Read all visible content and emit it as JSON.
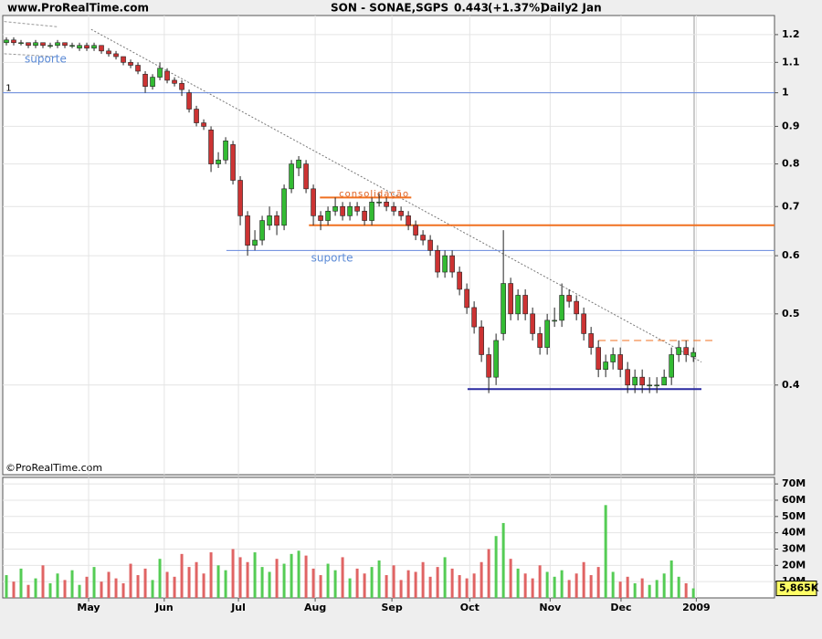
{
  "chart_data": {
    "type": "candlestick",
    "site": "www.ProRealTime.com",
    "title": "SON - SONAE,SGPS",
    "last": 0.443,
    "change_label": "(+1.37%)",
    "period": "Daily",
    "date": "2 Jan",
    "copyright": "©ProRealTime.com",
    "log_scale": true,
    "grid": true,
    "up_color": "#33bb33",
    "down_color": "#cc3333",
    "volume_up_color": "#55cc55",
    "volume_down_color": "#e06464",
    "ylim": [
      0.302,
      1.274
    ],
    "yticks": [
      0.4,
      0.5,
      0.6,
      0.7,
      0.8,
      0.9,
      1,
      1.1,
      1.2
    ],
    "xlim": [
      -0.5,
      105.1
    ],
    "xticks": [
      {
        "value": 11.25,
        "label": "May"
      },
      {
        "value": 21.6,
        "label": "Jun"
      },
      {
        "value": 31.75,
        "label": "Jul"
      },
      {
        "value": 42.25,
        "label": "Aug"
      },
      {
        "value": 52.75,
        "label": "Sep"
      },
      {
        "value": 63.4,
        "label": "Oct"
      },
      {
        "value": 74.4,
        "label": "Nov"
      },
      {
        "value": 84.1,
        "label": "Dec"
      },
      {
        "value": 94.4,
        "label": "2009"
      }
    ],
    "ohlc": [
      [
        1.17,
        1.19,
        1.16,
        1.18
      ],
      [
        1.18,
        1.19,
        1.16,
        1.17
      ],
      [
        1.17,
        1.18,
        1.16,
        1.17
      ],
      [
        1.17,
        1.17,
        1.15,
        1.16
      ],
      [
        1.16,
        1.18,
        1.15,
        1.17
      ],
      [
        1.17,
        1.17,
        1.15,
        1.16
      ],
      [
        1.16,
        1.17,
        1.15,
        1.16
      ],
      [
        1.16,
        1.18,
        1.15,
        1.17
      ],
      [
        1.17,
        1.17,
        1.15,
        1.16
      ],
      [
        1.16,
        1.17,
        1.15,
        1.16
      ],
      [
        1.15,
        1.17,
        1.14,
        1.16
      ],
      [
        1.16,
        1.17,
        1.14,
        1.15
      ],
      [
        1.15,
        1.17,
        1.14,
        1.16
      ],
      [
        1.16,
        1.16,
        1.13,
        1.14
      ],
      [
        1.14,
        1.15,
        1.12,
        1.13
      ],
      [
        1.13,
        1.14,
        1.11,
        1.12
      ],
      [
        1.12,
        1.12,
        1.09,
        1.1
      ],
      [
        1.1,
        1.11,
        1.08,
        1.09
      ],
      [
        1.09,
        1.1,
        1.06,
        1.07
      ],
      [
        1.06,
        1.07,
        1.0,
        1.02
      ],
      [
        1.02,
        1.06,
        1.01,
        1.05
      ],
      [
        1.05,
        1.1,
        1.04,
        1.08
      ],
      [
        1.07,
        1.08,
        1.03,
        1.04
      ],
      [
        1.04,
        1.05,
        1.02,
        1.03
      ],
      [
        1.03,
        1.04,
        0.99,
        1.01
      ],
      [
        1.0,
        1.01,
        0.94,
        0.95
      ],
      [
        0.95,
        0.96,
        0.9,
        0.91
      ],
      [
        0.91,
        0.92,
        0.89,
        0.9
      ],
      [
        0.89,
        0.9,
        0.78,
        0.8
      ],
      [
        0.8,
        0.83,
        0.79,
        0.81
      ],
      [
        0.81,
        0.87,
        0.8,
        0.86
      ],
      [
        0.85,
        0.86,
        0.75,
        0.76
      ],
      [
        0.76,
        0.77,
        0.66,
        0.68
      ],
      [
        0.68,
        0.69,
        0.6,
        0.62
      ],
      [
        0.62,
        0.65,
        0.61,
        0.63
      ],
      [
        0.63,
        0.68,
        0.62,
        0.67
      ],
      [
        0.66,
        0.7,
        0.65,
        0.68
      ],
      [
        0.68,
        0.69,
        0.64,
        0.66
      ],
      [
        0.66,
        0.75,
        0.65,
        0.74
      ],
      [
        0.74,
        0.81,
        0.73,
        0.8
      ],
      [
        0.79,
        0.82,
        0.77,
        0.81
      ],
      [
        0.8,
        0.81,
        0.73,
        0.74
      ],
      [
        0.74,
        0.75,
        0.66,
        0.68
      ],
      [
        0.68,
        0.69,
        0.65,
        0.67
      ],
      [
        0.67,
        0.7,
        0.66,
        0.69
      ],
      [
        0.69,
        0.72,
        0.68,
        0.7
      ],
      [
        0.7,
        0.71,
        0.67,
        0.68
      ],
      [
        0.68,
        0.71,
        0.67,
        0.7
      ],
      [
        0.7,
        0.71,
        0.68,
        0.69
      ],
      [
        0.69,
        0.7,
        0.66,
        0.67
      ],
      [
        0.67,
        0.72,
        0.66,
        0.71
      ],
      [
        0.71,
        0.73,
        0.7,
        0.71
      ],
      [
        0.71,
        0.72,
        0.69,
        0.7
      ],
      [
        0.7,
        0.71,
        0.68,
        0.69
      ],
      [
        0.69,
        0.7,
        0.67,
        0.68
      ],
      [
        0.68,
        0.69,
        0.65,
        0.66
      ],
      [
        0.66,
        0.67,
        0.63,
        0.64
      ],
      [
        0.64,
        0.65,
        0.62,
        0.63
      ],
      [
        0.63,
        0.64,
        0.6,
        0.61
      ],
      [
        0.61,
        0.62,
        0.56,
        0.57
      ],
      [
        0.57,
        0.61,
        0.56,
        0.6
      ],
      [
        0.6,
        0.61,
        0.56,
        0.57
      ],
      [
        0.57,
        0.58,
        0.53,
        0.54
      ],
      [
        0.54,
        0.55,
        0.5,
        0.51
      ],
      [
        0.51,
        0.52,
        0.47,
        0.48
      ],
      [
        0.48,
        0.49,
        0.43,
        0.44
      ],
      [
        0.44,
        0.45,
        0.39,
        0.41
      ],
      [
        0.41,
        0.47,
        0.4,
        0.46
      ],
      [
        0.47,
        0.65,
        0.46,
        0.55
      ],
      [
        0.55,
        0.56,
        0.49,
        0.5
      ],
      [
        0.5,
        0.54,
        0.49,
        0.53
      ],
      [
        0.53,
        0.54,
        0.49,
        0.5
      ],
      [
        0.5,
        0.51,
        0.46,
        0.47
      ],
      [
        0.47,
        0.48,
        0.44,
        0.45
      ],
      [
        0.45,
        0.5,
        0.44,
        0.49
      ],
      [
        0.49,
        0.51,
        0.48,
        0.49
      ],
      [
        0.49,
        0.55,
        0.48,
        0.53
      ],
      [
        0.53,
        0.54,
        0.51,
        0.52
      ],
      [
        0.52,
        0.53,
        0.49,
        0.5
      ],
      [
        0.5,
        0.51,
        0.46,
        0.47
      ],
      [
        0.47,
        0.48,
        0.44,
        0.45
      ],
      [
        0.45,
        0.46,
        0.41,
        0.42
      ],
      [
        0.42,
        0.44,
        0.41,
        0.43
      ],
      [
        0.43,
        0.45,
        0.42,
        0.44
      ],
      [
        0.44,
        0.45,
        0.41,
        0.42
      ],
      [
        0.42,
        0.43,
        0.39,
        0.4
      ],
      [
        0.4,
        0.42,
        0.39,
        0.41
      ],
      [
        0.41,
        0.42,
        0.39,
        0.4
      ],
      [
        0.4,
        0.41,
        0.39,
        0.4
      ],
      [
        0.4,
        0.41,
        0.39,
        0.4
      ],
      [
        0.4,
        0.42,
        0.4,
        0.41
      ],
      [
        0.41,
        0.45,
        0.4,
        0.44
      ],
      [
        0.44,
        0.46,
        0.43,
        0.45
      ],
      [
        0.45,
        0.46,
        0.43,
        0.44
      ],
      [
        0.437,
        0.45,
        0.43,
        0.443
      ]
    ],
    "volume": [
      14,
      10,
      18,
      8,
      12,
      20,
      9,
      15,
      11,
      17,
      8,
      13,
      19,
      10,
      16,
      12,
      9,
      21,
      14,
      18,
      11,
      24,
      16,
      13,
      27,
      19,
      22,
      15,
      28,
      20,
      17,
      30,
      25,
      22,
      28,
      19,
      16,
      24,
      21,
      27,
      29,
      26,
      18,
      14,
      21,
      17,
      25,
      12,
      18,
      15,
      19,
      23,
      14,
      20,
      11,
      17,
      16,
      22,
      13,
      19,
      25,
      18,
      14,
      12,
      15,
      22,
      30,
      38,
      46,
      24,
      18,
      15,
      12,
      20,
      16,
      13,
      17,
      11,
      15,
      22,
      14,
      19,
      57,
      16,
      10,
      13,
      9,
      12,
      8,
      11,
      15,
      23,
      13,
      9,
      5.865
    ],
    "last_volume_label": "5,865K",
    "vlim": [
      0,
      74
    ],
    "vticks": [
      {
        "value": 10,
        "label": "10M"
      },
      {
        "value": 20,
        "label": "20M"
      },
      {
        "value": 30,
        "label": "30M"
      },
      {
        "value": 40,
        "label": "40M"
      },
      {
        "value": 50,
        "label": "50M"
      },
      {
        "value": 60,
        "label": "60M"
      },
      {
        "value": 70,
        "label": "70M"
      }
    ],
    "lines": [
      {
        "x": [
          -0.3,
          6.9
        ],
        "y": [
          1.25,
          1.23
        ],
        "color": "#999999",
        "width": 1,
        "dash": "3,2"
      },
      {
        "x": [
          -0.3,
          6.9
        ],
        "y": [
          1.13,
          1.12
        ],
        "color": "#999999",
        "width": 1,
        "dash": "3,2"
      },
      {
        "x": [
          11.6,
          95.1
        ],
        "y": [
          1.22,
          0.43
        ],
        "color": "#777777",
        "width": 1,
        "dash": "2,2"
      },
      {
        "x": [
          -0.5,
          105.1
        ],
        "y": [
          1.0,
          1.0
        ],
        "color": "#6688dd",
        "width": 1,
        "dash": "none"
      },
      {
        "x": [
          30.1,
          105.1
        ],
        "y": [
          0.61,
          0.61
        ],
        "color": "#6688dd",
        "width": 1,
        "dash": "none"
      },
      {
        "x": [
          42.9,
          55.4
        ],
        "y": [
          0.72,
          0.72
        ],
        "color": "#f07020",
        "width": 2,
        "dash": "none"
      },
      {
        "x": [
          41.4,
          105.1
        ],
        "y": [
          0.66,
          0.66
        ],
        "color": "#f07020",
        "width": 2,
        "dash": "none"
      },
      {
        "x": [
          63.1,
          95.1
        ],
        "y": [
          0.395,
          0.395
        ],
        "color": "#2a2aa0",
        "width": 2,
        "dash": "none"
      },
      {
        "x": [
          81,
          96.6
        ],
        "y": [
          0.46,
          0.46
        ],
        "color": "#f07020",
        "width": 1,
        "dash": "8,5"
      }
    ],
    "annotations": [
      {
        "text": "1",
        "x": -0.1,
        "y": 1.015
      },
      {
        "text": "suporte",
        "x": 2.5,
        "y": 1.11
      },
      {
        "text": "suporte",
        "x": 41.7,
        "y": 0.595
      },
      {
        "text": "consolidação",
        "x": 45.5,
        "y": 0.728
      }
    ]
  }
}
